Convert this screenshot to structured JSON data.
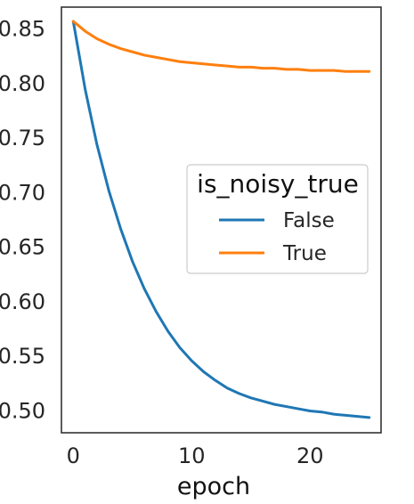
{
  "chart_data": {
    "type": "line",
    "title": "",
    "xlabel": "epoch",
    "ylabel": "",
    "xlim": [
      -1,
      26
    ],
    "ylim": [
      0.48,
      0.87
    ],
    "xticks": [
      0,
      10,
      20
    ],
    "yticks": [
      0.5,
      0.55,
      0.6,
      0.65,
      0.7,
      0.75,
      0.8,
      0.85
    ],
    "xtick_labels": [
      "0",
      "10",
      "20"
    ],
    "ytick_labels": [
      "0.50",
      "0.55",
      "0.60",
      "0.65",
      "0.70",
      "0.75",
      "0.80",
      "0.85"
    ],
    "grid": false,
    "legend": {
      "title": "is_noisy_true",
      "placement": "center-right"
    },
    "x": [
      0,
      1,
      2,
      3,
      4,
      5,
      6,
      7,
      8,
      9,
      10,
      11,
      12,
      13,
      14,
      15,
      16,
      17,
      18,
      19,
      20,
      21,
      22,
      23,
      24,
      25
    ],
    "series": [
      {
        "name": "False",
        "color": "#1f77b4",
        "values": [
          0.857,
          0.795,
          0.744,
          0.702,
          0.667,
          0.637,
          0.612,
          0.591,
          0.573,
          0.558,
          0.546,
          0.536,
          0.528,
          0.521,
          0.516,
          0.512,
          0.509,
          0.506,
          0.504,
          0.502,
          0.5,
          0.499,
          0.497,
          0.496,
          0.495,
          0.494
        ]
      },
      {
        "name": "True",
        "color": "#ff7f0e",
        "values": [
          0.857,
          0.848,
          0.841,
          0.836,
          0.832,
          0.829,
          0.826,
          0.824,
          0.822,
          0.82,
          0.819,
          0.818,
          0.817,
          0.816,
          0.815,
          0.815,
          0.814,
          0.814,
          0.813,
          0.813,
          0.812,
          0.812,
          0.812,
          0.811,
          0.811,
          0.811
        ]
      }
    ]
  }
}
